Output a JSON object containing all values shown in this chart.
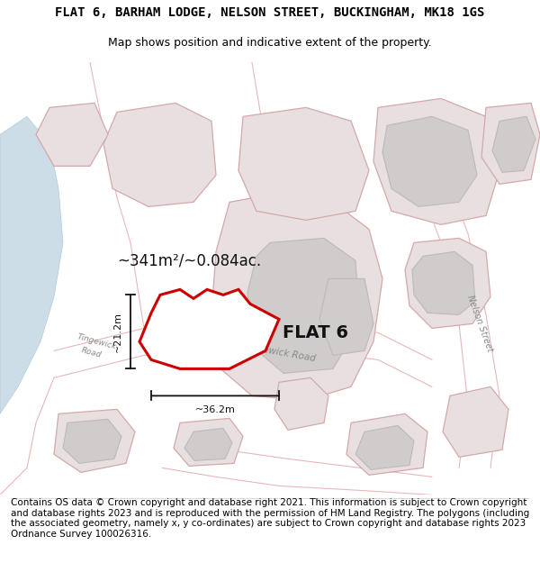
{
  "title": "FLAT 6, BARHAM LODGE, NELSON STREET, BUCKINGHAM, MK18 1GS",
  "subtitle": "Map shows position and indicative extent of the property.",
  "footer": "Contains OS data © Crown copyright and database right 2021. This information is subject to Crown copyright and database rights 2023 and is reproduced with the permission of HM Land Registry. The polygons (including the associated geometry, namely x, y co-ordinates) are subject to Crown copyright and database rights 2023 Ordnance Survey 100026316.",
  "area_text": "~341m²/~0.084ac.",
  "flat_label": "FLAT 6",
  "dim1_label": "~21.2m",
  "dim2_label": "~36.2m",
  "bg_color": "#f7f4f4",
  "water_color": "#ccdde8",
  "water_edge": "#b0ccd8",
  "block_face": "#e8e0e0",
  "block_edge": "#d4a8a8",
  "road_line_color": "#e8b8b8",
  "property_red": "#cc0000",
  "property_fill": "#ffffff",
  "gray_block": "#d0cccc",
  "gray_block_edge": "#c0b8b8",
  "title_fontsize": 10,
  "subtitle_fontsize": 9,
  "footer_fontsize": 7.5,
  "label_color": "#888888",
  "dim_color": "#111111"
}
